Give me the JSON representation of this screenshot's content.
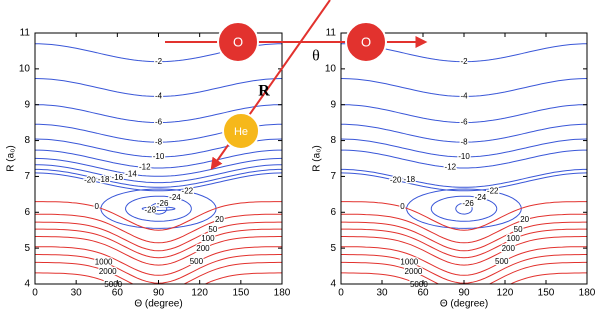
{
  "chart_data": [
    {
      "type": "contour",
      "xlabel": "Θ (degree)",
      "ylabel": "R (a₀)",
      "xlim": [
        0,
        180
      ],
      "ylim": [
        4,
        11
      ],
      "xticks": [
        0,
        30,
        60,
        90,
        120,
        150,
        180
      ],
      "yticks": [
        4,
        5,
        6,
        7,
        8,
        9,
        10,
        11
      ],
      "levels": [
        -2,
        -4,
        -6,
        -8,
        -10,
        -12,
        -14,
        -16,
        -18,
        -20,
        -22,
        -24,
        -26,
        -28,
        0,
        20,
        50,
        100,
        200,
        500,
        1000,
        2000,
        5000
      ],
      "negative_color": "#3a57d8",
      "positive_color": "#e2322e"
    },
    {
      "type": "contour",
      "xlabel": "Θ (degree)",
      "ylabel": "R (a₀)",
      "xlim": [
        0,
        180
      ],
      "ylim": [
        4,
        11
      ],
      "xticks": [
        0,
        30,
        60,
        90,
        120,
        150,
        180
      ],
      "yticks": [
        4,
        5,
        6,
        7,
        8,
        9,
        10,
        11
      ],
      "levels": [
        -2,
        -4,
        -6,
        -8,
        -10,
        -12,
        -18,
        -20,
        -22,
        -24,
        -26,
        0,
        20,
        50,
        100,
        200,
        500,
        1000,
        2000,
        5000
      ],
      "negative_color": "#3a57d8",
      "positive_color": "#e2322e"
    }
  ],
  "diagram": {
    "atoms": [
      "O",
      "O",
      "He"
    ],
    "labels": [
      "R",
      "θ"
    ]
  }
}
